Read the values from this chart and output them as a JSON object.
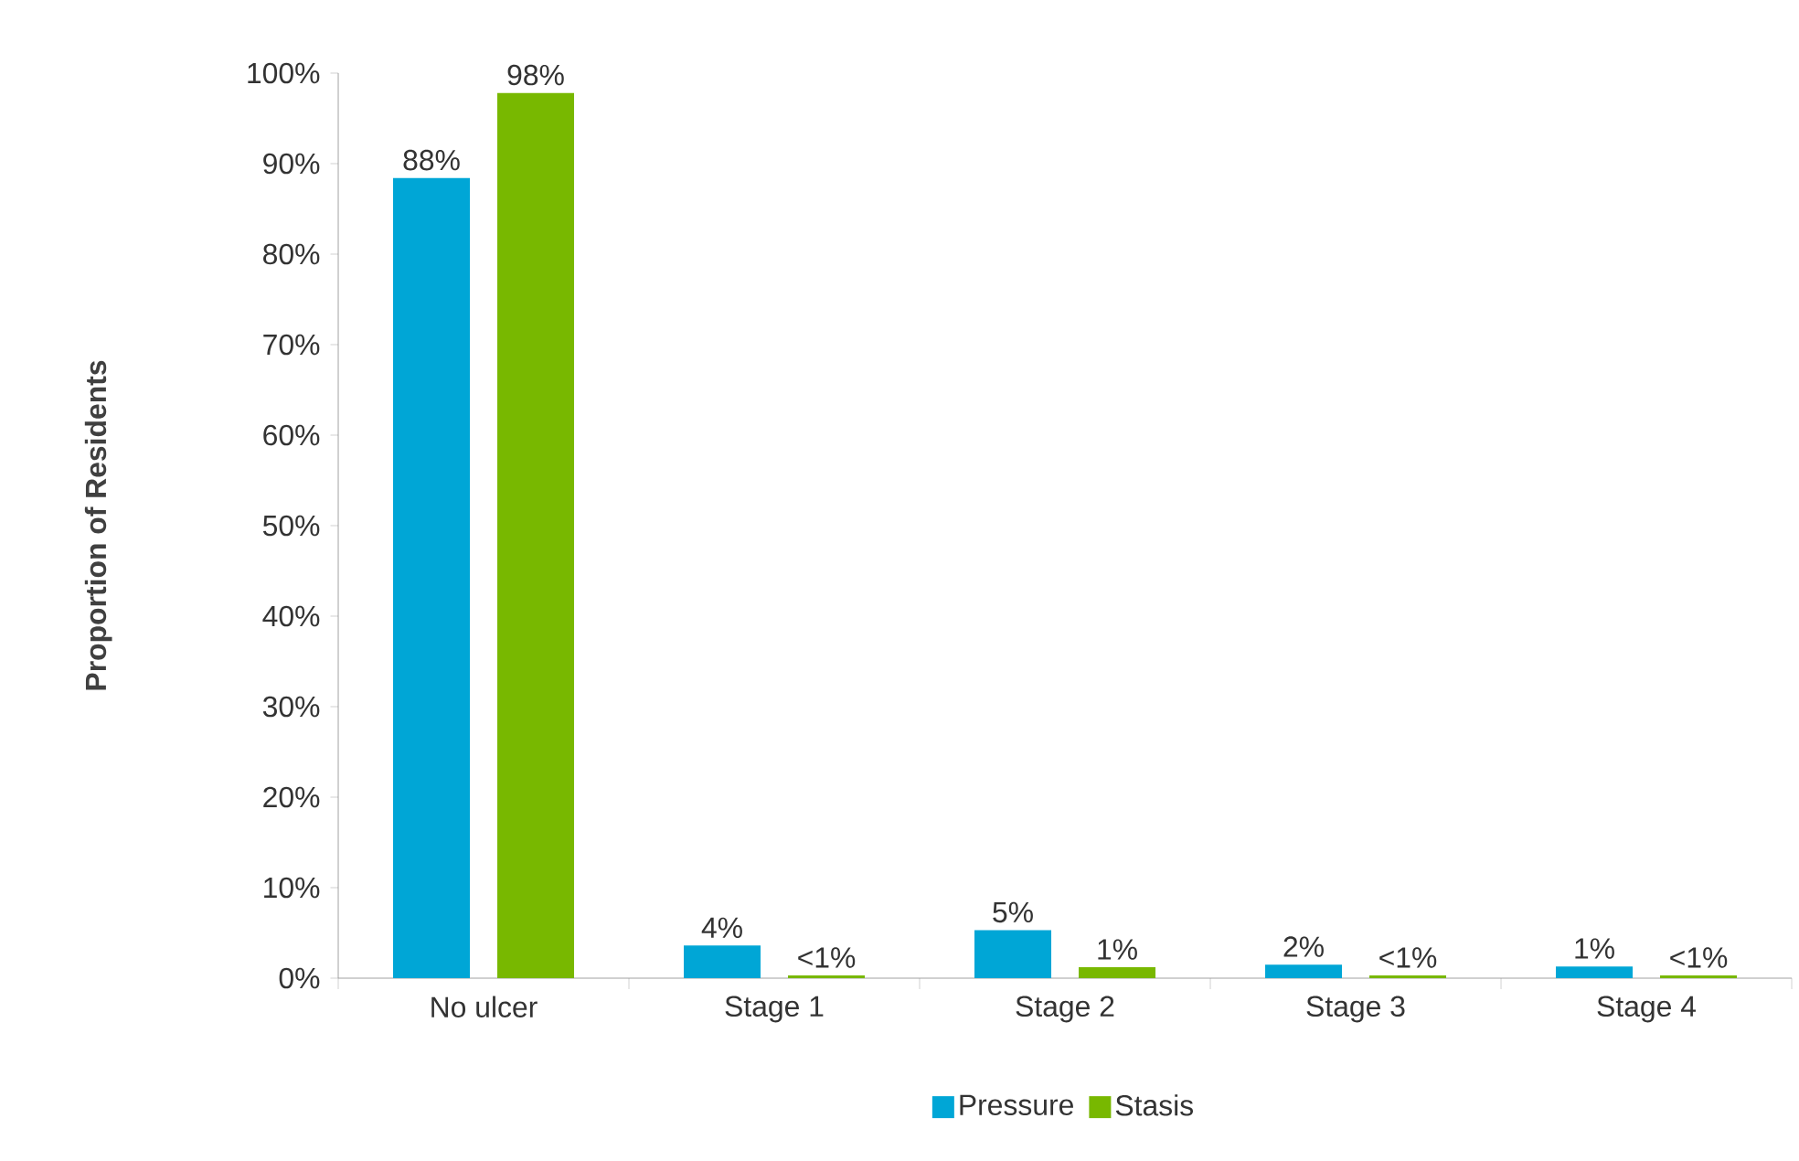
{
  "chart_data": {
    "type": "bar",
    "ylabel": "Proportion of Residents",
    "categories": [
      "No ulcer",
      "Stage 1",
      "Stage 2",
      "Stage 3",
      "Stage 4"
    ],
    "series": [
      {
        "name": "Pressure",
        "color": "#00a6d6",
        "values": [
          88.4,
          3.6,
          5.3,
          1.5,
          1.3
        ],
        "value_labels": [
          "88%",
          "4%",
          "5%",
          "2%",
          "1%"
        ]
      },
      {
        "name": "Stasis",
        "color": "#78b800",
        "values": [
          97.8,
          0.3,
          1.2,
          0.3,
          0.3
        ],
        "value_labels": [
          "98%",
          "<1%",
          "1%",
          "<1%",
          "<1%"
        ]
      }
    ],
    "ylim": [
      0,
      100
    ],
    "yticks": [
      {
        "value": 0,
        "label": "0%"
      },
      {
        "value": 10,
        "label": "10%"
      },
      {
        "value": 20,
        "label": "20%"
      },
      {
        "value": 30,
        "label": "30%"
      },
      {
        "value": 40,
        "label": "40%"
      },
      {
        "value": 50,
        "label": "50%"
      },
      {
        "value": 60,
        "label": "60%"
      },
      {
        "value": 70,
        "label": "70%"
      },
      {
        "value": 80,
        "label": "80%"
      },
      {
        "value": 90,
        "label": "90%"
      },
      {
        "value": 100,
        "label": "100%"
      }
    ],
    "legend": "bottom"
  }
}
